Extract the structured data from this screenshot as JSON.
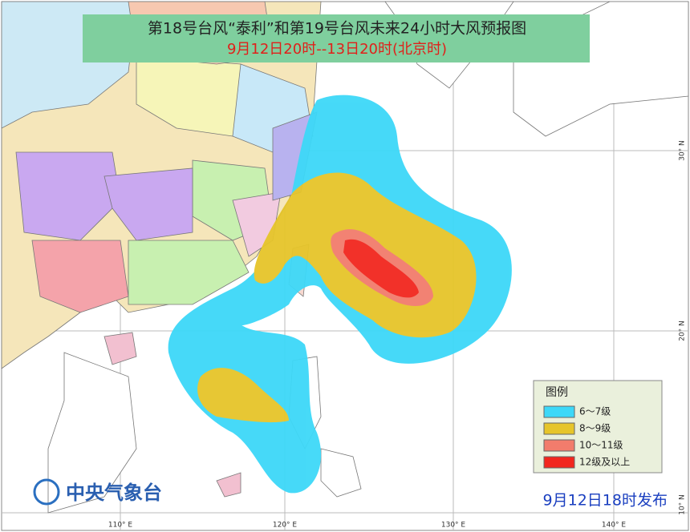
{
  "header": {
    "title": "第18号台风“泰利”和第19号台风未来24小时大风预报图",
    "subtitle": "9月12日20时--13日20时(北京时)"
  },
  "legend": {
    "title": "图例",
    "items": [
      {
        "label": "6～7级",
        "color": "#3dd8f8"
      },
      {
        "label": "8～9级",
        "color": "#e6c52a"
      },
      {
        "label": "10～11级",
        "color": "#f27c6c"
      },
      {
        "label": "12级及以上",
        "color": "#f2261e"
      }
    ]
  },
  "footer": {
    "issuer": "中央气象台",
    "issued": "9月12日18时发布"
  },
  "axes": {
    "lon": [
      "110° E",
      "120° E",
      "130° E",
      "140° E"
    ],
    "lat": [
      "30° N",
      "20° N",
      "10° N"
    ]
  }
}
